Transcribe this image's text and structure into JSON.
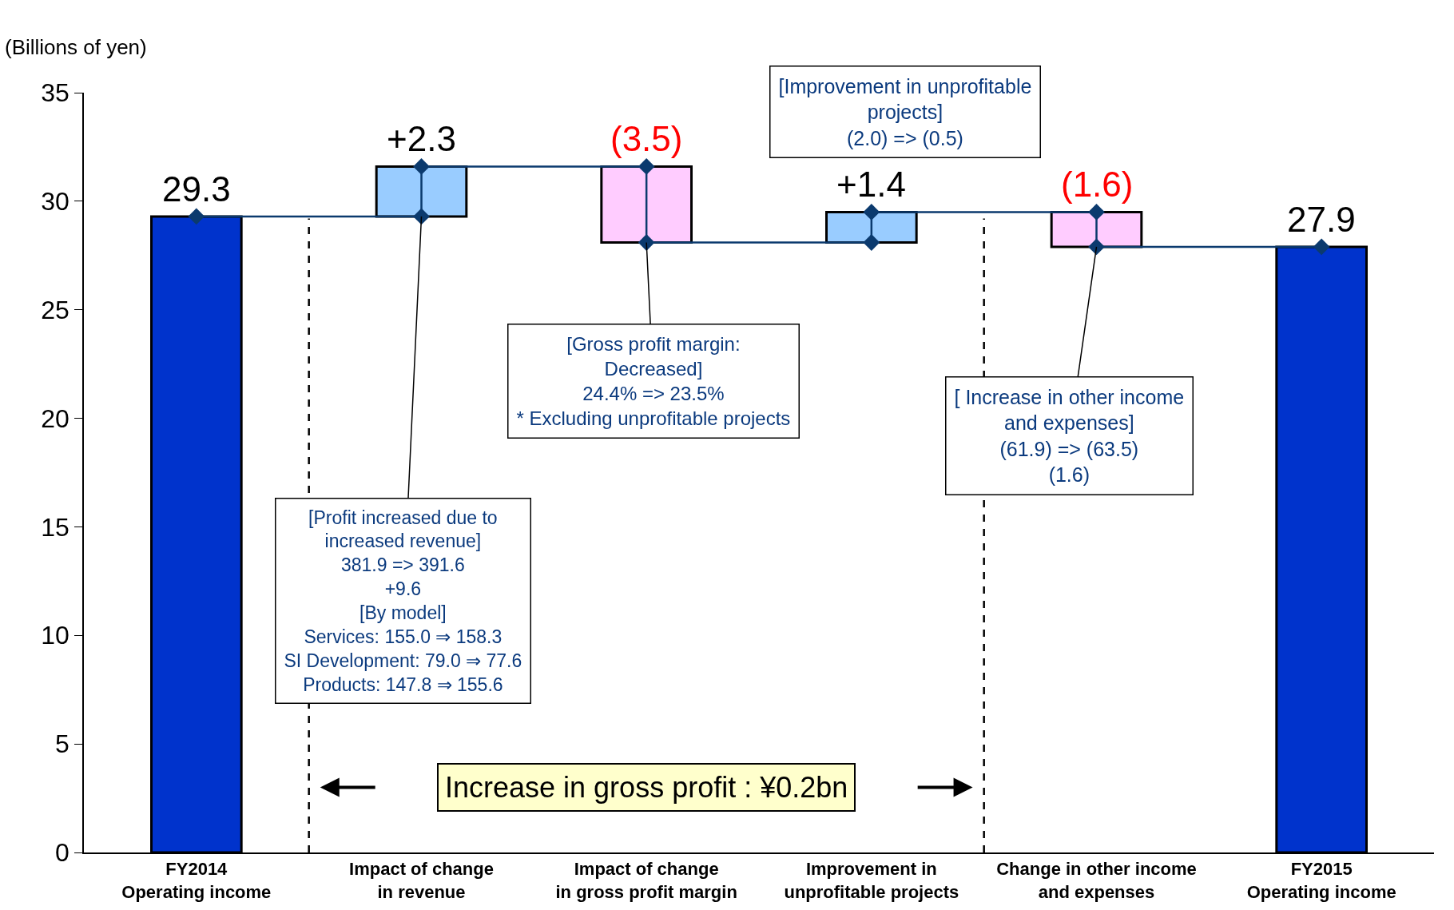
{
  "chart_data": {
    "type": "bar",
    "ylabel": "(Billions of yen)",
    "categories": [
      "FY2014\nOperating income",
      "Impact of change\nin revenue",
      "Impact of change\nin gross profit margin",
      "Improvement in\nunprofitable projects",
      "Change in other income\nand expenses",
      "FY2015\nOperating income"
    ],
    "series": [
      {
        "values": [
          29.3,
          2.3,
          -3.5,
          1.4,
          -1.6,
          27.9
        ],
        "base": [
          0,
          29.3,
          31.6,
          28.1,
          29.5,
          0
        ],
        "colors": [
          "#0033cc",
          "#99ccff",
          "#ffccff",
          "#99ccff",
          "#ffccff",
          "#0033cc"
        ],
        "value_labels": [
          "29.3",
          "+2.3",
          "(3.5)",
          "+1.4",
          "(1.6)",
          "27.9"
        ]
      },
      {
        "type": "line",
        "color": "#0b3a6e",
        "marker": "diamond",
        "x": [
          "FY2014\nOperating income",
          "Impact of change\nin revenue",
          "Impact of change\nin revenue",
          "Impact of change\nin gross profit margin",
          "Impact of change\nin gross profit margin",
          "Improvement in\nunprofitable projects",
          "Improvement in\nunprofitable projects",
          "Change in other income\nand expenses",
          "Change in other income\nand expenses",
          "FY2015\nOperating income"
        ],
        "values": [
          29.3,
          29.3,
          31.6,
          31.6,
          28.1,
          28.1,
          29.5,
          29.5,
          27.9,
          27.9
        ]
      }
    ],
    "ylim": [
      0,
      35
    ],
    "yticks": [
      0,
      5,
      10,
      15,
      20,
      25,
      30,
      35
    ],
    "grid": false,
    "bands": [
      {
        "axis": "x",
        "from": "Impact of change\nin revenue",
        "to": "Improvement in\nunprofitable projects",
        "label": "Increase in gross profit : ¥0.2bn",
        "color": "#ffffcc"
      }
    ],
    "annotations": [
      "[Improvement in unprofitable\nprojects]\n(2.0) => (0.5)",
      {
        "text": "[Gross profit margin:\nDecreased]\n24.4% => 23.5%\n* Excluding unprofitable projects",
        "x": "Impact of change\nin gross profit margin",
        "y": 28.1
      },
      {
        "text": "[Profit increased due to\nincreased revenue]\n381.9 => 391.6\n+9.6\n[By model]\nServices: 155.0 ⇒ 158.3\nSI Development: 79.0 ⇒ 77.6\nProducts: 147.8 ⇒ 155.6",
        "x": "Impact of change\nin revenue",
        "y": 29.3
      },
      {
        "text": "[ Increase in other income\nand expenses]\n(61.9) => (63.5)\n(1.6)",
        "x": "Change in other income\nand expenses",
        "y": 27.9
      }
    ]
  }
}
